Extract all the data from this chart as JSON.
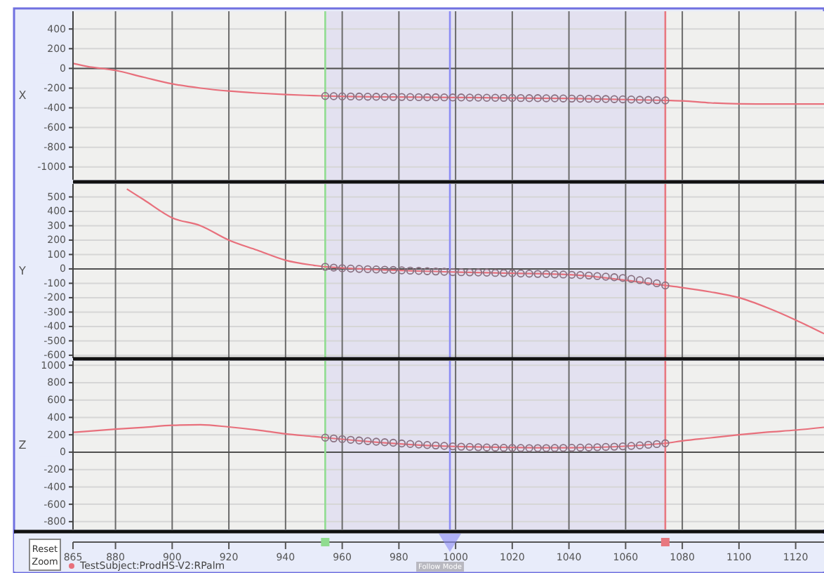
{
  "chart_data": [
    {
      "type": "line",
      "ylabel": "X",
      "xlim": [
        865,
        1130
      ],
      "xticks": [
        865,
        880,
        900,
        920,
        940,
        960,
        980,
        1000,
        1020,
        1040,
        1060,
        1080,
        1100,
        1120
      ],
      "ylim": [
        -1130,
        580
      ],
      "yticks": [
        400,
        200,
        0,
        -200,
        -400,
        -600,
        -800,
        -1000
      ],
      "grid": true,
      "tick_labels": "y",
      "bands": [
        {
          "axis": "x",
          "from": 954,
          "to": 1074,
          "color": "#e3e1f0"
        }
      ],
      "ref_lines": [
        {
          "axis": "x",
          "value": 954,
          "color": "#90dc90"
        },
        {
          "axis": "x",
          "value": 998,
          "color": "#8c8cf5"
        },
        {
          "axis": "x",
          "value": 1074,
          "color": "#e87880"
        }
      ],
      "series": [
        {
          "type": "line",
          "color": "#e8707c",
          "marker": "none",
          "x": [
            865,
            870,
            880,
            890,
            900,
            910,
            920,
            930,
            940,
            950,
            954,
            970,
            1000,
            1040,
            1074,
            1080,
            1090,
            1100,
            1110,
            1120,
            1130
          ],
          "values": [
            50,
            20,
            -20,
            -90,
            -157,
            -200,
            -230,
            -250,
            -265,
            -276,
            -280,
            -288,
            -295,
            -305,
            -325,
            -330,
            -350,
            -360,
            -362,
            -362,
            -362
          ]
        },
        {
          "type": "scatter",
          "color": "#8a7282",
          "marker": "circle",
          "x": [
            954,
            957,
            960,
            963,
            966,
            969,
            972,
            975,
            978,
            981,
            984,
            987,
            990,
            993,
            996,
            999,
            1002,
            1005,
            1008,
            1011,
            1014,
            1017,
            1020,
            1023,
            1026,
            1029,
            1032,
            1035,
            1038,
            1041,
            1044,
            1047,
            1050,
            1053,
            1056,
            1059,
            1062,
            1065,
            1068,
            1071,
            1074
          ],
          "values": [
            -280,
            -282,
            -284,
            -285,
            -286,
            -287,
            -288,
            -289,
            -290,
            -290,
            -291,
            -292,
            -293,
            -293,
            -294,
            -295,
            -295,
            -296,
            -297,
            -298,
            -298,
            -299,
            -300,
            -301,
            -302,
            -302,
            -303,
            -304,
            -305,
            -306,
            -307,
            -308,
            -309,
            -311,
            -312,
            -314,
            -316,
            -318,
            -320,
            -322,
            -325
          ]
        }
      ]
    },
    {
      "type": "line",
      "ylabel": "Y",
      "xlim": [
        865,
        1130
      ],
      "xticks": [
        865,
        880,
        900,
        920,
        940,
        960,
        980,
        1000,
        1020,
        1040,
        1060,
        1080,
        1100,
        1120
      ],
      "ylim": [
        -620,
        590
      ],
      "yticks": [
        500,
        400,
        300,
        200,
        100,
        0,
        -100,
        -200,
        -300,
        -400,
        -500,
        -600
      ],
      "grid": true,
      "tick_labels": "y",
      "bands": [
        {
          "axis": "x",
          "from": 954,
          "to": 1074,
          "color": "#e3e1f0"
        }
      ],
      "ref_lines": [
        {
          "axis": "x",
          "value": 954,
          "color": "#90dc90"
        },
        {
          "axis": "x",
          "value": 998,
          "color": "#8c8cf5"
        },
        {
          "axis": "x",
          "value": 1074,
          "color": "#e87880"
        }
      ],
      "series": [
        {
          "type": "line",
          "color": "#e8707c",
          "marker": "none",
          "x": [
            884,
            890,
            900,
            910,
            920,
            930,
            940,
            950,
            954,
            1000,
            1040,
            1074,
            1080,
            1090,
            1100,
            1110,
            1120,
            1130
          ],
          "values": [
            555,
            480,
            355,
            300,
            200,
            130,
            60,
            25,
            15,
            -22,
            -40,
            -115,
            -130,
            -160,
            -200,
            -270,
            -355,
            -450
          ]
        },
        {
          "type": "scatter",
          "color": "#8a7282",
          "marker": "circle",
          "x": [
            954,
            957,
            960,
            963,
            966,
            969,
            972,
            975,
            978,
            981,
            984,
            987,
            990,
            993,
            996,
            999,
            1002,
            1005,
            1008,
            1011,
            1014,
            1017,
            1020,
            1023,
            1026,
            1029,
            1032,
            1035,
            1038,
            1041,
            1044,
            1047,
            1050,
            1053,
            1056,
            1059,
            1062,
            1065,
            1068,
            1071,
            1074
          ],
          "values": [
            15,
            9,
            5,
            2,
            0,
            -2,
            -4,
            -6,
            -8,
            -10,
            -12,
            -14,
            -16,
            -18,
            -20,
            -22,
            -23,
            -24,
            -25,
            -26,
            -28,
            -29,
            -30,
            -32,
            -33,
            -35,
            -36,
            -38,
            -39,
            -41,
            -43,
            -46,
            -50,
            -54,
            -58,
            -63,
            -70,
            -78,
            -87,
            -100,
            -115
          ]
        }
      ]
    },
    {
      "type": "line",
      "ylabel": "Z",
      "xlim": [
        865,
        1130
      ],
      "xticks": [
        865,
        880,
        900,
        920,
        940,
        960,
        980,
        1000,
        1020,
        1040,
        1060,
        1080,
        1100,
        1120
      ],
      "ylim": [
        -890,
        1050
      ],
      "yticks": [
        1000,
        800,
        600,
        400,
        200,
        0,
        -200,
        -400,
        -600,
        -800
      ],
      "grid": true,
      "legend": "bottom left",
      "annotations": [
        "Reset Zoom",
        "Follow Mode"
      ],
      "bands": [
        {
          "axis": "x",
          "from": 954,
          "to": 1074,
          "color": "#e3e1f0"
        }
      ],
      "ref_lines": [
        {
          "axis": "x",
          "value": 954,
          "color": "#90dc90"
        },
        {
          "axis": "x",
          "value": 998,
          "color": "#8c8cf5"
        },
        {
          "axis": "x",
          "value": 1074,
          "color": "#e87880"
        }
      ],
      "series": [
        {
          "type": "line",
          "name": "TestSubject:ProdHS-V2:RPalm",
          "color": "#e8707c",
          "marker": "none",
          "x": [
            865,
            880,
            890,
            900,
            910,
            920,
            930,
            940,
            950,
            954,
            1000,
            1040,
            1074,
            1080,
            1090,
            1100,
            1110,
            1120,
            1130
          ],
          "values": [
            228,
            265,
            285,
            309,
            315,
            290,
            255,
            211,
            180,
            167,
            65,
            50,
            102,
            130,
            165,
            200,
            230,
            254,
            286
          ]
        },
        {
          "type": "scatter",
          "color": "#8a7282",
          "marker": "circle",
          "x": [
            954,
            957,
            960,
            963,
            966,
            969,
            972,
            975,
            978,
            981,
            984,
            987,
            990,
            993,
            996,
            999,
            1002,
            1005,
            1008,
            1011,
            1014,
            1017,
            1020,
            1023,
            1026,
            1029,
            1032,
            1035,
            1038,
            1041,
            1044,
            1047,
            1050,
            1053,
            1056,
            1059,
            1062,
            1065,
            1068,
            1071,
            1074
          ],
          "values": [
            167,
            158,
            150,
            142,
            134,
            127,
            120,
            114,
            108,
            100,
            94,
            88,
            82,
            77,
            72,
            67,
            63,
            60,
            57,
            54,
            52,
            50,
            49,
            48,
            47,
            47,
            47,
            48,
            49,
            50,
            52,
            54,
            57,
            60,
            63,
            67,
            72,
            78,
            85,
            93,
            102
          ]
        }
      ]
    }
  ]
}
